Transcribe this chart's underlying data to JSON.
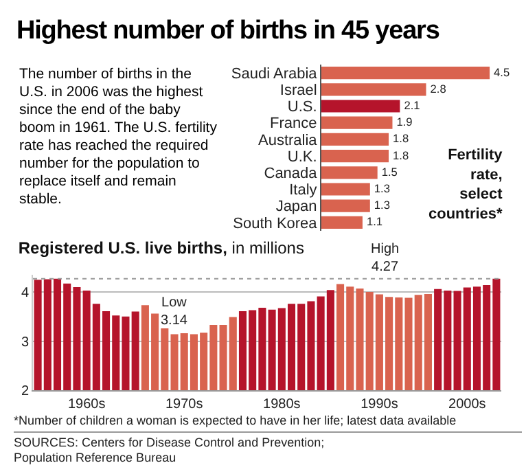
{
  "chart_data": [
    {
      "type": "bar",
      "orientation": "horizontal",
      "title": "Highest number of births in 45 years",
      "subtitle": "The number of births in the U.S. in 2006 was the highest since the end of the baby boom in 1961. The U.S. fertility rate has reached the required number for the population to replace itself and remain stable.",
      "categories": [
        "Saudi Arabia",
        "Israel",
        "U.S.",
        "France",
        "Australia",
        "U.K.",
        "Canada",
        "Italy",
        "Japan",
        "South Korea"
      ],
      "values": [
        4.5,
        2.8,
        2.1,
        1.9,
        1.8,
        1.8,
        1.5,
        1.3,
        1.3,
        1.1
      ],
      "colors": [
        "#d9634f",
        "#d9634f",
        "#b5142b",
        "#d9634f",
        "#d9634f",
        "#d9634f",
        "#d9634f",
        "#d9634f",
        "#d9634f",
        "#d9634f"
      ],
      "data_labels": true,
      "tick_labels": "y",
      "legend": false,
      "annotations": [
        "Fertility rate, select countries*"
      ]
    },
    {
      "type": "bar",
      "title": "Registered U.S. live births, in millions",
      "categories": [
        null,
        null,
        null,
        null,
        null,
        "1960s",
        null,
        null,
        null,
        null,
        null,
        null,
        null,
        null,
        null,
        "1970s",
        null,
        null,
        null,
        null,
        null,
        null,
        null,
        null,
        null,
        "1980s",
        null,
        null,
        null,
        null,
        null,
        null,
        null,
        null,
        null,
        "1990s",
        null,
        null,
        null,
        null,
        null,
        null,
        null,
        null,
        "2000s",
        null,
        null,
        null
      ],
      "values": [
        4.25,
        4.26,
        4.27,
        4.17,
        4.1,
        4.03,
        3.76,
        3.61,
        3.52,
        3.5,
        3.6,
        3.73,
        3.56,
        3.26,
        3.14,
        3.16,
        3.14,
        3.17,
        3.33,
        3.33,
        3.49,
        3.61,
        3.63,
        3.68,
        3.64,
        3.67,
        3.76,
        3.76,
        3.81,
        3.91,
        4.04,
        4.16,
        4.11,
        4.07,
        4.0,
        3.95,
        3.9,
        3.89,
        3.88,
        3.94,
        3.96,
        4.06,
        4.03,
        4.02,
        4.09,
        4.11,
        4.14,
        4.27
      ],
      "colors": [
        "#b5142b",
        "#b5142b",
        "#b5142b",
        "#b5142b",
        "#b5142b",
        "#b5142b",
        "#b5142b",
        "#b5142b",
        "#b5142b",
        "#b5142b",
        "#b5142b",
        "#d9634f",
        "#d9634f",
        "#d9634f",
        "#d9634f",
        "#d9634f",
        "#d9634f",
        "#d9634f",
        "#d9634f",
        "#d9634f",
        "#d9634f",
        "#b5142b",
        "#b5142b",
        "#b5142b",
        "#b5142b",
        "#b5142b",
        "#b5142b",
        "#b5142b",
        "#b5142b",
        "#b5142b",
        "#b5142b",
        "#d9634f",
        "#d9634f",
        "#d9634f",
        "#d9634f",
        "#d9634f",
        "#d9634f",
        "#d9634f",
        "#d9634f",
        "#d9634f",
        "#d9634f",
        "#b5142b",
        "#b5142b",
        "#b5142b",
        "#b5142b",
        "#b5142b",
        "#b5142b",
        "#b5142b"
      ],
      "ylim": [
        2,
        4.35
      ],
      "yticks": [
        2,
        3,
        4
      ],
      "grid": "y",
      "legend": false,
      "ref_lines": [
        {
          "axis": "y",
          "value": 4.27,
          "color": "#999999",
          "line_style": "dotted"
        }
      ],
      "annotations": [
        {
          "text": "Low\n3.14",
          "y": 3.14
        },
        "High\n4.27",
        "*Number of children a woman is expected to have in her life; latest data available",
        "SOURCES: Centers for Disease Control and Prevention;\nPopulation Reference Bureau"
      ]
    }
  ]
}
